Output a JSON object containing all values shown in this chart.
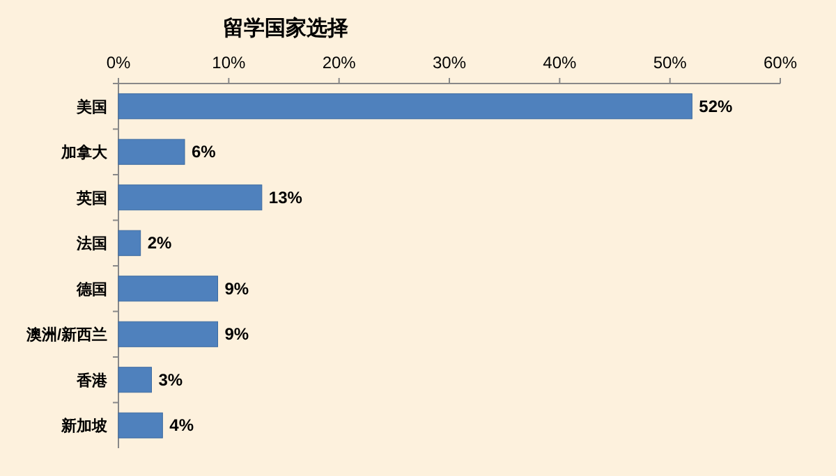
{
  "chart_data": {
    "type": "bar",
    "orientation": "horizontal",
    "title": "留学国家选择",
    "categories": [
      "美国",
      "加拿大",
      "英国",
      "法国",
      "德国",
      "澳洲/新西兰",
      "香港",
      "新加坡"
    ],
    "values": [
      52,
      6,
      13,
      2,
      9,
      9,
      3,
      4
    ],
    "value_labels": [
      "52%",
      "6%",
      "13%",
      "2%",
      "9%",
      "9%",
      "3%",
      "4%"
    ],
    "color": "#4f81bd",
    "xlim": [
      0,
      60
    ],
    "xticks": [
      {
        "value": 0,
        "label": "0%"
      },
      {
        "value": 10,
        "label": "10%"
      },
      {
        "value": 20,
        "label": "20%"
      },
      {
        "value": 30,
        "label": "30%"
      },
      {
        "value": 40,
        "label": "40%"
      },
      {
        "value": 50,
        "label": "50%"
      },
      {
        "value": 60,
        "label": "60%"
      }
    ],
    "grid": false
  }
}
